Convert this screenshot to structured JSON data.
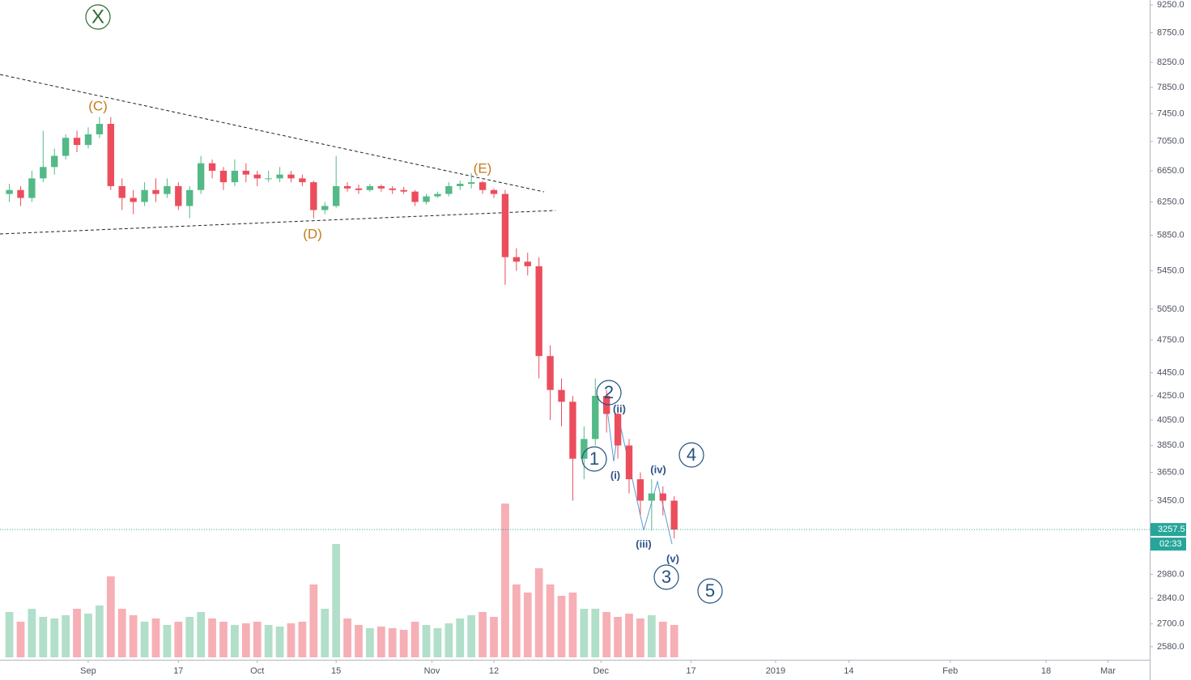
{
  "chart_data": {
    "type": "candlestick",
    "log_scale": true,
    "grid": false,
    "up_color": "#53b987",
    "down_color": "#eb4d5c",
    "x": [
      -14,
      -12,
      -10,
      -8,
      -6,
      -4,
      -2,
      0,
      2,
      4,
      6,
      8,
      10,
      12,
      14,
      16,
      18,
      20,
      22,
      24,
      26,
      28,
      30,
      32,
      34,
      36,
      38,
      40,
      42,
      44,
      46,
      48,
      50,
      52,
      54,
      56,
      58,
      60,
      62,
      64,
      66,
      68,
      70,
      72,
      74,
      76,
      78,
      80,
      82,
      84,
      86,
      88,
      90,
      92,
      94,
      96,
      98,
      100,
      102,
      104
    ],
    "open": [
      6350,
      6400,
      6300,
      6550,
      6700,
      6850,
      7100,
      7000,
      7150,
      7300,
      6450,
      6300,
      6250,
      6400,
      6350,
      6450,
      6200,
      6400,
      6750,
      6650,
      6500,
      6650,
      6600,
      6550,
      6550,
      6600,
      6550,
      6500,
      6150,
      6200,
      6450,
      6420,
      6400,
      6450,
      6420,
      6400,
      6380,
      6250,
      6320,
      6350,
      6450,
      6480,
      6500,
      6400,
      6350,
      5600,
      5550,
      5500,
      4600,
      4300,
      4200,
      3750,
      3900,
      4250,
      4100,
      3850,
      3600,
      3450,
      3500,
      3450
    ],
    "high": [
      6480,
      6450,
      6650,
      7200,
      6950,
      7150,
      7200,
      7250,
      7400,
      7400,
      6550,
      6400,
      6500,
      6550,
      6550,
      6500,
      6450,
      6850,
      6800,
      6700,
      6800,
      6750,
      6650,
      6650,
      6700,
      6650,
      6600,
      6520,
      6250,
      6850,
      6500,
      6470,
      6480,
      6470,
      6450,
      6440,
      6400,
      6350,
      6380,
      6500,
      6520,
      6620,
      6520,
      6420,
      6400,
      5700,
      5650,
      5600,
      4700,
      4400,
      4250,
      4000,
      4400,
      4300,
      4150,
      3900,
      3650,
      3600,
      3550,
      3480
    ],
    "low": [
      6250,
      6200,
      6250,
      6500,
      6600,
      6800,
      6900,
      6950,
      7100,
      6400,
      6150,
      6100,
      6200,
      6250,
      6300,
      6150,
      6050,
      6350,
      6550,
      6400,
      6450,
      6500,
      6450,
      6500,
      6500,
      6500,
      6450,
      6050,
      6100,
      6180,
      6380,
      6350,
      6380,
      6380,
      6350,
      6350,
      6200,
      6220,
      6300,
      6320,
      6400,
      6420,
      6350,
      6300,
      5300,
      5450,
      5400,
      4400,
      4050,
      4000,
      3450,
      3600,
      3850,
      3950,
      3750,
      3500,
      3350,
      3250,
      3350,
      3200
    ],
    "close": [
      6400,
      6300,
      6550,
      6700,
      6850,
      7100,
      7000,
      7150,
      7300,
      6450,
      6300,
      6250,
      6400,
      6350,
      6450,
      6200,
      6400,
      6750,
      6650,
      6500,
      6650,
      6600,
      6550,
      6550,
      6600,
      6550,
      6500,
      6150,
      6200,
      6450,
      6420,
      6400,
      6450,
      6420,
      6400,
      6380,
      6250,
      6320,
      6350,
      6450,
      6480,
      6500,
      6400,
      6350,
      5600,
      5550,
      5500,
      4600,
      4300,
      4200,
      3750,
      3900,
      4250,
      4100,
      3850,
      3600,
      3450,
      3500,
      3450,
      3257.5
    ],
    "volume": [
      28,
      22,
      30,
      25,
      24,
      26,
      30,
      27,
      32,
      50,
      30,
      26,
      22,
      24,
      20,
      22,
      25,
      28,
      24,
      22,
      20,
      21,
      22,
      20,
      19,
      21,
      22,
      45,
      30,
      70,
      24,
      20,
      18,
      19,
      18,
      17,
      22,
      20,
      18,
      21,
      24,
      26,
      28,
      25,
      95,
      45,
      40,
      55,
      45,
      38,
      40,
      30,
      30,
      28,
      25,
      27,
      24,
      26,
      22,
      20
    ],
    "volume_lim": [
      0,
      100
    ],
    "xlim": [
      -15.66,
      188.4
    ],
    "xticks": [
      {
        "value": 0,
        "label": "Sep"
      },
      {
        "value": 16,
        "label": "17"
      },
      {
        "value": 30,
        "label": "Oct"
      },
      {
        "value": 44,
        "label": "15"
      },
      {
        "value": 61,
        "label": "Nov"
      },
      {
        "value": 72,
        "label": "12"
      },
      {
        "value": 91,
        "label": "Dec"
      },
      {
        "value": 107,
        "label": "17"
      },
      {
        "value": 122,
        "label": "2019"
      },
      {
        "value": 135,
        "label": "14"
      },
      {
        "value": 153,
        "label": "Feb"
      },
      {
        "value": 170,
        "label": "18"
      },
      {
        "value": 181,
        "label": "Mar"
      }
    ],
    "ylim": [
      2514,
      9340
    ],
    "yticks": [
      {
        "value": 9250,
        "label": "9250.0"
      },
      {
        "value": 8750,
        "label": "8750.0"
      },
      {
        "value": 8250,
        "label": "8250.0"
      },
      {
        "value": 7850,
        "label": "7850.0"
      },
      {
        "value": 7450,
        "label": "7450.0"
      },
      {
        "value": 7050,
        "label": "7050.0"
      },
      {
        "value": 6650,
        "label": "6650.0"
      },
      {
        "value": 6250,
        "label": "6250.0"
      },
      {
        "value": 5850,
        "label": "5850.0"
      },
      {
        "value": 5450,
        "label": "5450.0"
      },
      {
        "value": 5050,
        "label": "5050.0"
      },
      {
        "value": 4750,
        "label": "4750.0"
      },
      {
        "value": 4450,
        "label": "4450.0"
      },
      {
        "value": 4250,
        "label": "4250.0"
      },
      {
        "value": 4050,
        "label": "4050.0"
      },
      {
        "value": 3850,
        "label": "3850.0"
      },
      {
        "value": 3650,
        "label": "3650.0"
      },
      {
        "value": 3450,
        "label": "3450.0"
      },
      {
        "value": 2980,
        "label": "2980.0"
      },
      {
        "value": 2840,
        "label": "2840.0"
      },
      {
        "value": 2700,
        "label": "2700.0"
      },
      {
        "value": 2580,
        "label": "2580.0"
      }
    ],
    "last_price": 3257.5,
    "countdown": "02:33",
    "annotations": [
      "X",
      "(C)",
      "(D)",
      "(E)",
      "1",
      "2",
      "3",
      "4",
      "5",
      "(i)",
      "(ii)",
      "(iii)",
      "(iv)",
      "(v)"
    ]
  }
}
